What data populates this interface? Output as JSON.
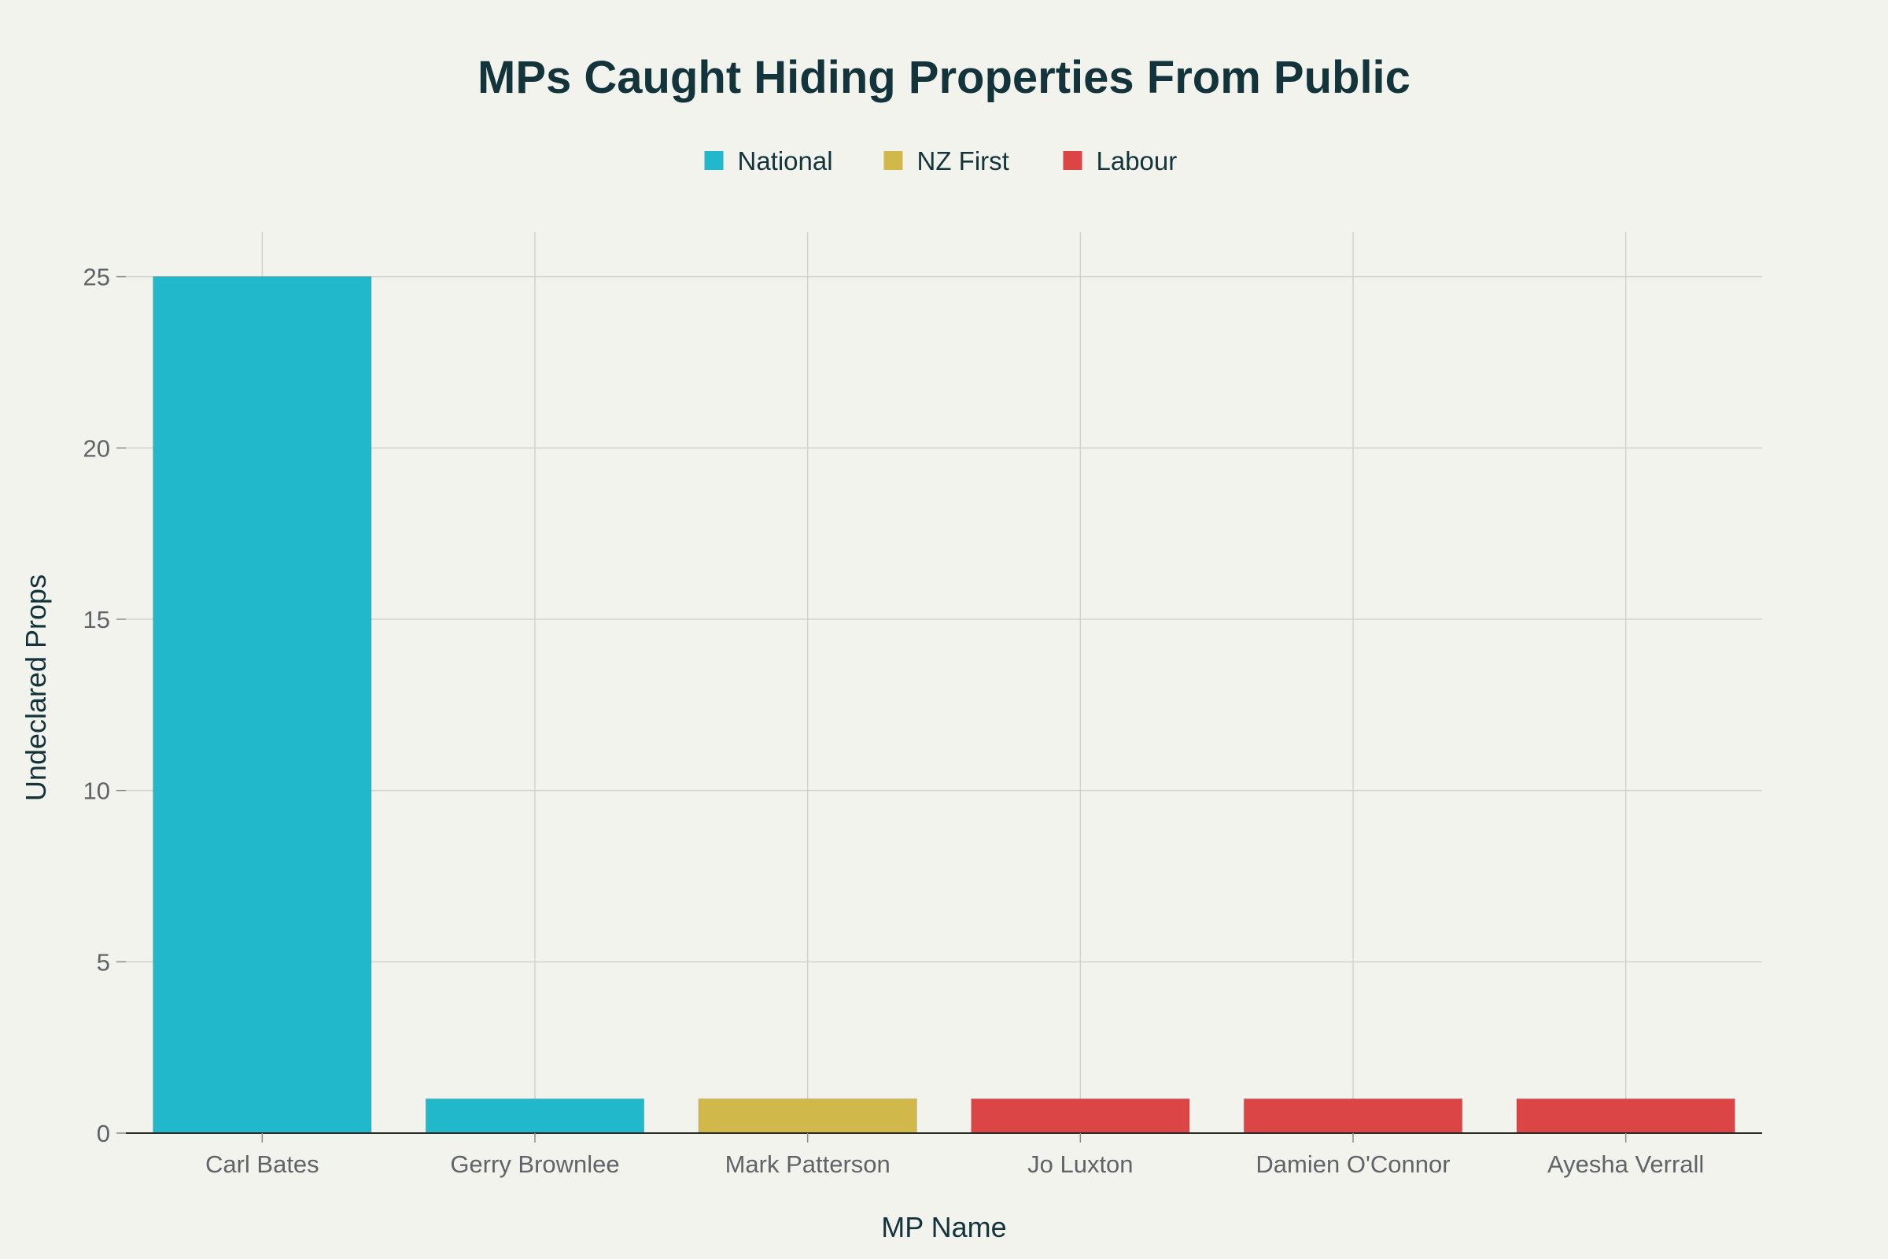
{
  "chart_data": {
    "type": "bar",
    "title": "MPs Caught Hiding Properties From Public",
    "xlabel": "MP Name",
    "ylabel": "Undeclared Props",
    "ylim": [
      0,
      26.3
    ],
    "yticks": [
      0,
      5,
      10,
      15,
      20,
      25
    ],
    "grid": true,
    "legend_position": "top-center",
    "categories": [
      "Carl Bates",
      "Gerry Brownlee",
      "Mark Patterson",
      "Jo Luxton",
      "Damien O'Connor",
      "Ayesha Verrall"
    ],
    "series": [
      {
        "name": "National",
        "color": "#21b8cc",
        "values": [
          25,
          1,
          null,
          null,
          null,
          null
        ]
      },
      {
        "name": "NZ First",
        "color": "#d1b84b",
        "values": [
          null,
          null,
          1,
          null,
          null,
          null
        ]
      },
      {
        "name": "Labour",
        "color": "#dc4545",
        "values": [
          null,
          null,
          null,
          1,
          1,
          1
        ]
      }
    ]
  }
}
